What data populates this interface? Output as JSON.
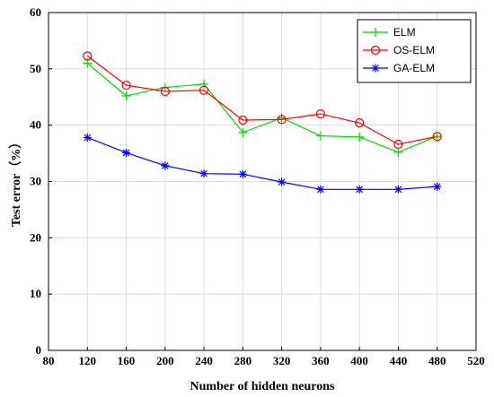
{
  "chart_data": {
    "type": "line",
    "xlabel": "Number of hidden neurons",
    "ylabel": "Test error（%）",
    "xlim": [
      80,
      520
    ],
    "ylim": [
      0,
      60
    ],
    "xticks": [
      80,
      120,
      160,
      200,
      240,
      280,
      320,
      360,
      400,
      440,
      480,
      520
    ],
    "yticks": [
      0,
      10,
      20,
      30,
      40,
      50,
      60
    ],
    "grid": true,
    "legend_position": "top-right",
    "x": [
      120,
      160,
      200,
      240,
      280,
      320,
      360,
      400,
      440,
      480
    ],
    "series": [
      {
        "name": "ELM",
        "color": "#00dd00",
        "marker": "plus",
        "values": [
          51.0,
          45.2,
          46.7,
          47.3,
          38.7,
          41.3,
          38.1,
          37.9,
          35.2,
          38.0
        ]
      },
      {
        "name": "OS-ELM",
        "color": "#ff0000",
        "marker": "circle",
        "values": [
          52.3,
          47.1,
          46.0,
          46.2,
          40.9,
          41.0,
          42.0,
          40.4,
          36.6,
          38.0
        ]
      },
      {
        "name": "GA-ELM",
        "color": "#0000ff",
        "marker": "asterisk",
        "values": [
          37.8,
          35.1,
          32.8,
          31.4,
          31.3,
          29.9,
          28.6,
          28.6,
          28.6,
          29.1
        ]
      }
    ]
  }
}
